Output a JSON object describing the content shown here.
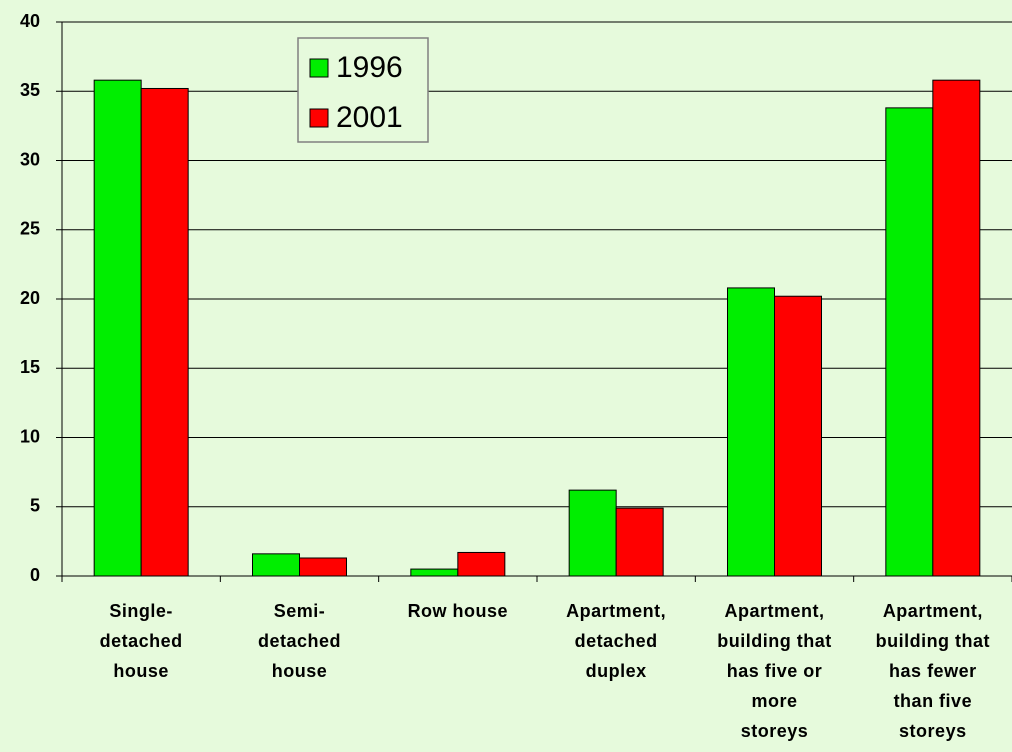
{
  "chart_data": {
    "type": "bar",
    "categories": [
      "Single-\ndetached\nhouse",
      "Semi-\ndetached\nhouse",
      "Row house",
      "Apartment,\ndetached\nduplex",
      "Apartment,\nbuilding that\nhas five or\nmore\nstoreys",
      "Apartment,\nbuilding that\nhas fewer\nthan five\nstoreys"
    ],
    "series": [
      {
        "name": "1996",
        "color": "#00ee00",
        "values": [
          35.8,
          1.6,
          0.5,
          6.2,
          20.8,
          33.8
        ]
      },
      {
        "name": "2001",
        "color": "#ff0000",
        "values": [
          35.2,
          1.3,
          1.7,
          4.9,
          20.2,
          35.8
        ]
      }
    ],
    "ylim": [
      0,
      40
    ],
    "yticks": [
      0,
      5,
      10,
      15,
      20,
      25,
      30,
      35,
      40
    ],
    "grid": true,
    "legend": "top-center"
  }
}
